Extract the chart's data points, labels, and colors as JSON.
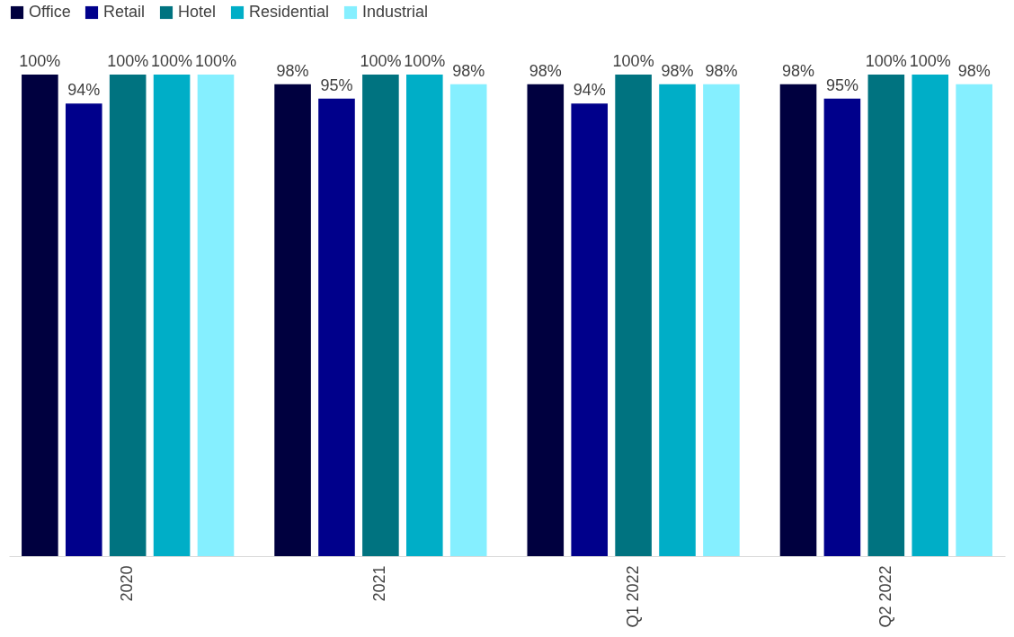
{
  "chart_data": {
    "type": "bar",
    "categories": [
      "2020",
      "2021",
      "Q1 2022",
      "Q2 2022"
    ],
    "legend": "top",
    "series": [
      {
        "name": "Office",
        "color": "#00003f",
        "values": [
          100,
          98,
          98,
          98
        ],
        "value_labels": [
          "100%",
          "98%",
          "98%",
          "98%"
        ]
      },
      {
        "name": "Retail",
        "color": "#00008b",
        "values": [
          94,
          95,
          94,
          95
        ],
        "value_labels": [
          "94%",
          "95%",
          "94%",
          "95%"
        ]
      },
      {
        "name": "Hotel",
        "color": "#007380",
        "values": [
          100,
          100,
          100,
          100
        ],
        "value_labels": [
          "100%",
          "100%",
          "100%",
          "100%"
        ]
      },
      {
        "name": "Residential",
        "color": "#00aec7",
        "values": [
          100,
          100,
          98,
          100
        ],
        "value_labels": [
          "100%",
          "100%",
          "98%",
          "100%"
        ]
      },
      {
        "name": "Industrial",
        "color": "#85efff",
        "values": [
          100,
          98,
          98,
          98
        ],
        "value_labels": [
          "100%",
          "98%",
          "98%",
          "98%"
        ]
      }
    ]
  }
}
